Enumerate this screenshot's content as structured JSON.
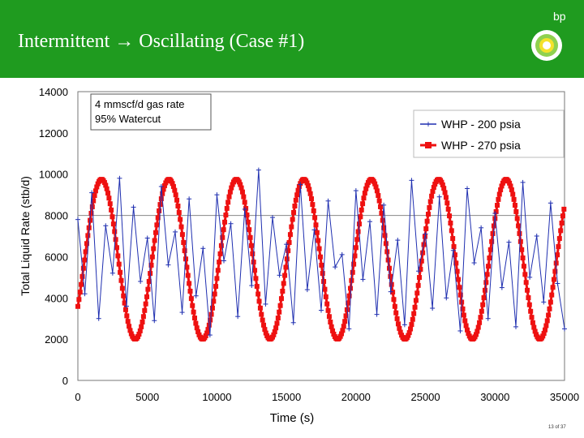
{
  "slide": {
    "title": "Intermittent → Oscillating (Case #1)",
    "logo_text": "bp",
    "page": "13 of 37"
  },
  "colors": {
    "banner": "#1f9b1f",
    "series_200": "#1f2fb0",
    "series_270": "#ee1111"
  },
  "chart_data": {
    "type": "line",
    "title": "",
    "xlabel": "Time (s)",
    "ylabel": "Total Liquid Rate (stb/d)",
    "xlim": [
      0,
      35000
    ],
    "ylim": [
      0,
      14000
    ],
    "xticks": [
      0,
      5000,
      10000,
      15000,
      20000,
      25000,
      30000,
      35000
    ],
    "yticks": [
      0,
      2000,
      4000,
      6000,
      8000,
      10000,
      12000,
      14000
    ],
    "grid": "horizontal line at 8000",
    "legend_position": "top-right",
    "annotation": [
      "4 mmscf/d gas rate",
      "95% Watercut"
    ],
    "series": [
      {
        "name": "WHP - 200 psia",
        "marker": "plus",
        "x": [
          0,
          500,
          1000,
          1500,
          2000,
          2500,
          3000,
          3500,
          4000,
          4500,
          5000,
          5500,
          6000,
          6500,
          7000,
          7500,
          8000,
          8500,
          9000,
          9500,
          10000,
          10500,
          11000,
          11500,
          12000,
          12500,
          13000,
          13500,
          14000,
          14500,
          15000,
          15500,
          16000,
          16500,
          17000,
          17500,
          18000,
          18500,
          19000,
          19500,
          20000,
          20500,
          21000,
          21500,
          22000,
          22500,
          23000,
          23500,
          24000,
          24500,
          25000,
          25500,
          26000,
          26500,
          27000,
          27500,
          28000,
          28500,
          29000,
          29500,
          30000,
          30500,
          31000,
          31500,
          32000,
          32500,
          33000,
          33500,
          34000,
          34500,
          35000
        ],
        "y": [
          7800,
          4200,
          9100,
          3000,
          7500,
          5200,
          9800,
          3600,
          8400,
          4800,
          6900,
          2900,
          9400,
          5600,
          7200,
          3300,
          8800,
          4100,
          6400,
          2200,
          9000,
          5800,
          7600,
          3100,
          8300,
          4600,
          10200,
          3700,
          7900,
          5100,
          6600,
          2800,
          9500,
          4400,
          7300,
          3400,
          8700,
          5500,
          6100,
          2500,
          9200,
          4900,
          7700,
          3200,
          8500,
          4300,
          6800,
          2700,
          9700,
          5300,
          7100,
          3500,
          8900,
          4000,
          6300,
          2400,
          9300,
          5700,
          7400,
          3000,
          8100,
          4500,
          6700,
          2600,
          9600,
          5000,
          7000,
          3800,
          8600,
          4700,
          2500
        ]
      },
      {
        "name": "WHP - 270 psia",
        "marker": "square",
        "period": 4850,
        "min": 2000,
        "max": 9750,
        "peak_times": [
          1700,
          6550,
          11400,
          16250,
          21100,
          25950,
          30800
        ]
      }
    ]
  }
}
